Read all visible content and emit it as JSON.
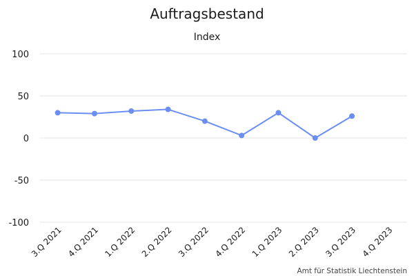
{
  "chart_data": {
    "type": "line",
    "title": "Auftragsbestand",
    "subtitle": "Index",
    "categories": [
      "3.Q 2021",
      "4.Q 2021",
      "1.Q 2022",
      "2.Q 2022",
      "3.Q 2022",
      "4.Q 2022",
      "1.Q 2023",
      "2.Q 2023",
      "3.Q 2023",
      "4.Q 2023"
    ],
    "series": [
      {
        "values": [
          30,
          29,
          32,
          34,
          20,
          3,
          30,
          0,
          26,
          null
        ]
      }
    ],
    "ylim": [
      -100,
      100
    ],
    "yticks": [
      100,
      50,
      0,
      -50,
      -100
    ],
    "grid": true,
    "legend": "none",
    "colors": {
      "line": "#6b8ff0",
      "grid": "#e6e6e6",
      "text": "#1a1a1a"
    }
  },
  "credit": "Amt für Statistik Liechtenstein"
}
